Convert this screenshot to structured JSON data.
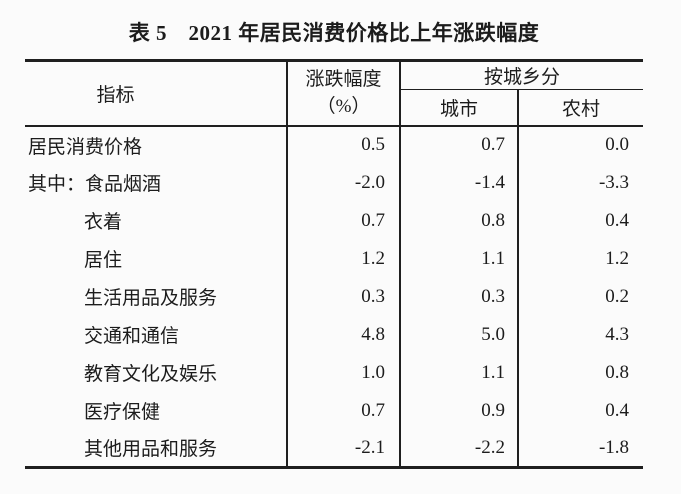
{
  "title": "表 5　2021 年居民消费价格比上年涨跌幅度",
  "table": {
    "header": {
      "indicator": "指标",
      "change_line1": "涨跌幅度",
      "change_line2": "（%）",
      "by_region": "按城乡分",
      "urban": "城市",
      "rural": "农村"
    },
    "rows": [
      {
        "label": "居民消费价格",
        "total": "0.5",
        "urban": "0.7",
        "rural": "0.0"
      },
      {
        "label": "其中：食品烟酒",
        "total": "-2.0",
        "urban": "-1.4",
        "rural": "-3.3"
      },
      {
        "label": "衣着",
        "total": "0.7",
        "urban": "0.8",
        "rural": "0.4"
      },
      {
        "label": "居住",
        "total": "1.2",
        "urban": "1.1",
        "rural": "1.2"
      },
      {
        "label": "生活用品及服务",
        "total": "0.3",
        "urban": "0.3",
        "rural": "0.2"
      },
      {
        "label": "交通和通信",
        "total": "4.8",
        "urban": "5.0",
        "rural": "4.3"
      },
      {
        "label": "教育文化及娱乐",
        "total": "1.0",
        "urban": "1.1",
        "rural": "0.8"
      },
      {
        "label": "医疗保健",
        "total": "0.7",
        "urban": "0.9",
        "rural": "0.4"
      },
      {
        "label": "其他用品和服务",
        "total": "-2.1",
        "urban": "-2.2",
        "rural": "-1.8"
      }
    ]
  },
  "colors": {
    "text": "#1c1c1c",
    "line": "#1f1f1f",
    "background": "#fbfbfb"
  }
}
